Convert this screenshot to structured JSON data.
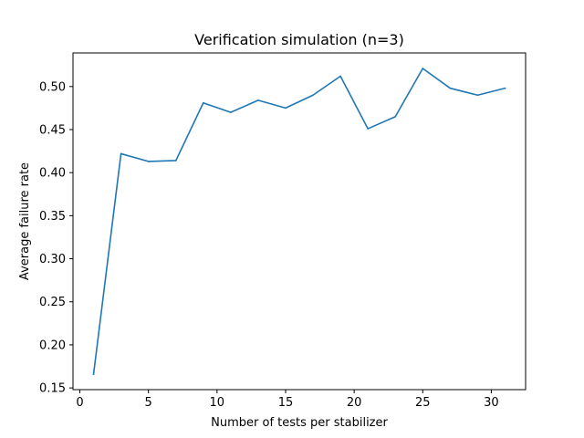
{
  "chart_data": {
    "type": "line",
    "title": "Verification simulation (n=3)",
    "xlabel": "Number of tests per stabilizer",
    "ylabel": "Average failure rate",
    "xlim": [
      -0.5,
      32.5
    ],
    "ylim": [
      0.148,
      0.539
    ],
    "xticks": [
      0,
      5,
      10,
      15,
      20,
      25,
      30
    ],
    "xtick_labels": [
      "0",
      "5",
      "10",
      "15",
      "20",
      "25",
      "30"
    ],
    "yticks": [
      0.15,
      0.2,
      0.25,
      0.3,
      0.35,
      0.4,
      0.45,
      0.5
    ],
    "ytick_labels": [
      "0.15",
      "0.20",
      "0.25",
      "0.30",
      "0.35",
      "0.40",
      "0.45",
      "0.50"
    ],
    "grid": false,
    "series": [
      {
        "name": "failure rate",
        "color": "#1f77b4",
        "x": [
          1,
          3,
          5,
          7,
          9,
          11,
          13,
          15,
          17,
          19,
          21,
          23,
          25,
          27,
          29,
          31
        ],
        "y": [
          0.166,
          0.422,
          0.413,
          0.414,
          0.481,
          0.47,
          0.484,
          0.475,
          0.49,
          0.512,
          0.451,
          0.465,
          0.521,
          0.498,
          0.49,
          0.498
        ]
      }
    ]
  }
}
